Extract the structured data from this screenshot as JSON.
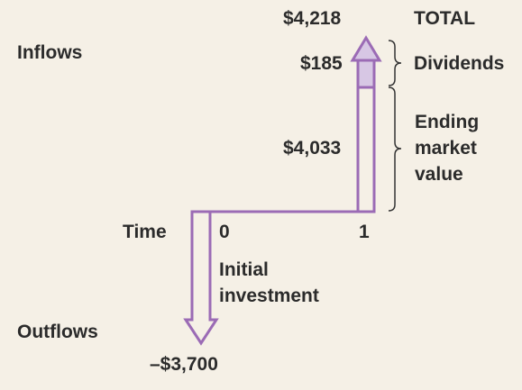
{
  "labels": {
    "inflows": "Inflows",
    "outflows": "Outflows",
    "time": "Time",
    "time_0": "0",
    "time_1": "1",
    "total_value": "$4,218",
    "total_label": "TOTAL",
    "dividends_value": "$185",
    "dividends_label": "Dividends",
    "ending_value": "$4,033",
    "ending_label_lines": [
      "Ending",
      "market",
      "value"
    ],
    "initial_label_lines": [
      "Initial",
      "investment"
    ],
    "outflow_value": "–$3,700"
  },
  "colors": {
    "background": "#f5f0e6",
    "arrow_outline": "#9b6bb5",
    "dividend_fill": "#d7c7e4",
    "text": "#2b2b2b",
    "bracket": "#333333"
  }
}
